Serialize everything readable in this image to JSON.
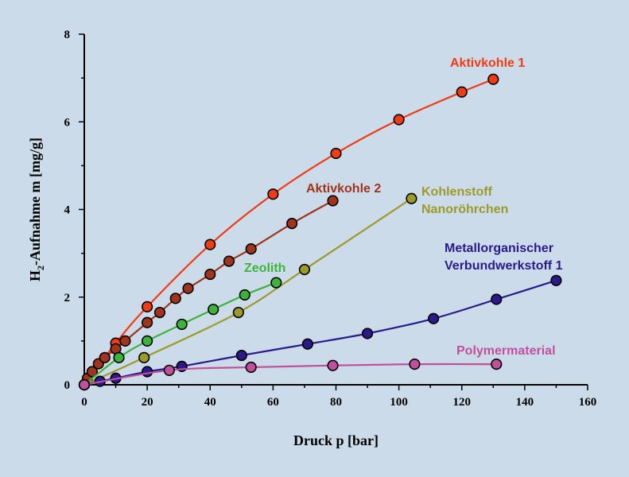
{
  "chart_data": {
    "type": "scatter",
    "title": "",
    "xlabel": "Druck p [bar]",
    "ylabel_main": "H",
    "ylabel_sub": "2",
    "ylabel_rest": "-Aufnahme m [mg/g]",
    "xlim": [
      0,
      160
    ],
    "ylim": [
      0,
      8
    ],
    "xticks": [
      0,
      20,
      40,
      60,
      80,
      100,
      120,
      140,
      160
    ],
    "yticks": [
      0,
      2,
      4,
      6,
      8
    ],
    "grid": false,
    "series": [
      {
        "name": "Aktivkohle 1",
        "color": "#f03c14",
        "label_lines": [
          "Aktivkohle 1"
        ],
        "points": [
          [
            0,
            0
          ],
          [
            10,
            0.95
          ],
          [
            20,
            1.78
          ],
          [
            40,
            3.2
          ],
          [
            60,
            4.35
          ],
          [
            80,
            5.28
          ],
          [
            100,
            6.05
          ],
          [
            120,
            6.68
          ],
          [
            130,
            6.97
          ]
        ]
      },
      {
        "name": "Aktivkohle 2",
        "color": "#a0341e",
        "label_lines": [
          "Aktivkohle 2"
        ],
        "points": [
          [
            0,
            0
          ],
          [
            1,
            0.15
          ],
          [
            2.5,
            0.3
          ],
          [
            4.5,
            0.48
          ],
          [
            6.5,
            0.62
          ],
          [
            10,
            0.82
          ],
          [
            13,
            1.0
          ],
          [
            20,
            1.42
          ],
          [
            24,
            1.65
          ],
          [
            29,
            1.97
          ],
          [
            33,
            2.2
          ],
          [
            40,
            2.52
          ],
          [
            46,
            2.82
          ],
          [
            53,
            3.1
          ],
          [
            66,
            3.68
          ],
          [
            79,
            4.2
          ]
        ]
      },
      {
        "name": "Kohlenstoff Nanoröhrchen",
        "color": "#9c9a28",
        "label_lines": [
          "Kohlenstoff",
          "Nanoröhrchen"
        ],
        "points": [
          [
            0,
            0
          ],
          [
            19,
            0.62
          ],
          [
            49,
            1.65
          ],
          [
            70,
            2.63
          ],
          [
            104,
            4.25
          ]
        ]
      },
      {
        "name": "Zeolith",
        "color": "#3cb43c",
        "label_lines": [
          "Zeolith"
        ],
        "points": [
          [
            0,
            0
          ],
          [
            11,
            0.62
          ],
          [
            20,
            1.0
          ],
          [
            31,
            1.38
          ],
          [
            41,
            1.72
          ],
          [
            51,
            2.05
          ],
          [
            61,
            2.33
          ]
        ]
      },
      {
        "name": "Metallorganischer Verbundwerkstoff 1",
        "color": "#2a1a8a",
        "label_lines": [
          "Metallorganischer",
          "Verbundwerkstoff 1"
        ],
        "points": [
          [
            0,
            0
          ],
          [
            5,
            0.08
          ],
          [
            10,
            0.15
          ],
          [
            20,
            0.3
          ],
          [
            31,
            0.42
          ],
          [
            50,
            0.67
          ],
          [
            71,
            0.93
          ],
          [
            90,
            1.17
          ],
          [
            111,
            1.51
          ],
          [
            131,
            1.95
          ],
          [
            150,
            2.38
          ]
        ]
      },
      {
        "name": "Polymermaterial",
        "color": "#c0509c",
        "label_lines": [
          "Polymermaterial"
        ],
        "points": [
          [
            0,
            0
          ],
          [
            27,
            0.33
          ],
          [
            53,
            0.4
          ],
          [
            79,
            0.44
          ],
          [
            105,
            0.47
          ],
          [
            131,
            0.47
          ]
        ]
      }
    ]
  }
}
